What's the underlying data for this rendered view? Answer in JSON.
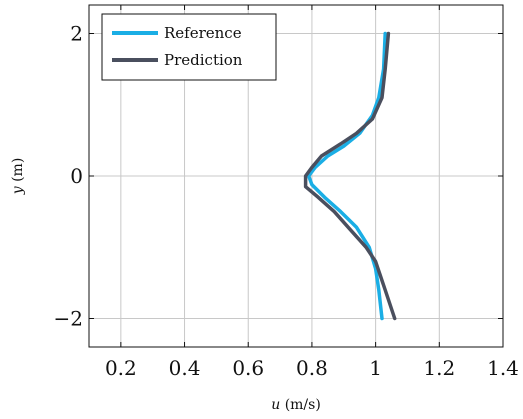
{
  "chart_data": {
    "type": "line",
    "title": "",
    "xlabel": {
      "symbol": "u",
      "unit": "(m/s)"
    },
    "ylabel": {
      "symbol": "y",
      "unit": "(m)"
    },
    "xlim": [
      0.1,
      1.4
    ],
    "ylim": [
      -2.4,
      2.4
    ],
    "x_ticks": [
      0.2,
      0.4,
      0.6,
      0.8,
      1,
      1.2,
      1.4
    ],
    "x_tick_labels": [
      "0.2",
      "0.4",
      "0.6",
      "0.8",
      "1",
      "1.2",
      "1.4"
    ],
    "y_ticks": [
      -2,
      0,
      2
    ],
    "y_tick_labels": [
      "−2",
      "0",
      "2"
    ],
    "grid": true,
    "legend_position": "top-left",
    "series": [
      {
        "name": "Reference",
        "color": "#1aaee5",
        "points": [
          [
            1.03,
            2.0
          ],
          [
            1.025,
            1.5
          ],
          [
            1.01,
            1.1
          ],
          [
            0.99,
            0.85
          ],
          [
            0.95,
            0.6
          ],
          [
            0.9,
            0.42
          ],
          [
            0.85,
            0.28
          ],
          [
            0.81,
            0.12
          ],
          [
            0.79,
            0.0
          ],
          [
            0.8,
            -0.12
          ],
          [
            0.84,
            -0.3
          ],
          [
            0.89,
            -0.5
          ],
          [
            0.94,
            -0.72
          ],
          [
            0.98,
            -1.0
          ],
          [
            1.0,
            -1.3
          ],
          [
            1.01,
            -1.6
          ],
          [
            1.02,
            -2.0
          ]
        ]
      },
      {
        "name": "Prediction",
        "color": "#4a4f5e",
        "points": [
          [
            1.04,
            2.0
          ],
          [
            1.03,
            1.5
          ],
          [
            1.02,
            1.1
          ],
          [
            0.99,
            0.8
          ],
          [
            0.94,
            0.6
          ],
          [
            0.89,
            0.45
          ],
          [
            0.83,
            0.28
          ],
          [
            0.8,
            0.12
          ],
          [
            0.78,
            0.0
          ],
          [
            0.78,
            -0.15
          ],
          [
            0.82,
            -0.3
          ],
          [
            0.87,
            -0.5
          ],
          [
            0.92,
            -0.75
          ],
          [
            0.97,
            -1.0
          ],
          [
            1.0,
            -1.2
          ],
          [
            1.03,
            -1.6
          ],
          [
            1.06,
            -2.0
          ]
        ]
      }
    ]
  }
}
